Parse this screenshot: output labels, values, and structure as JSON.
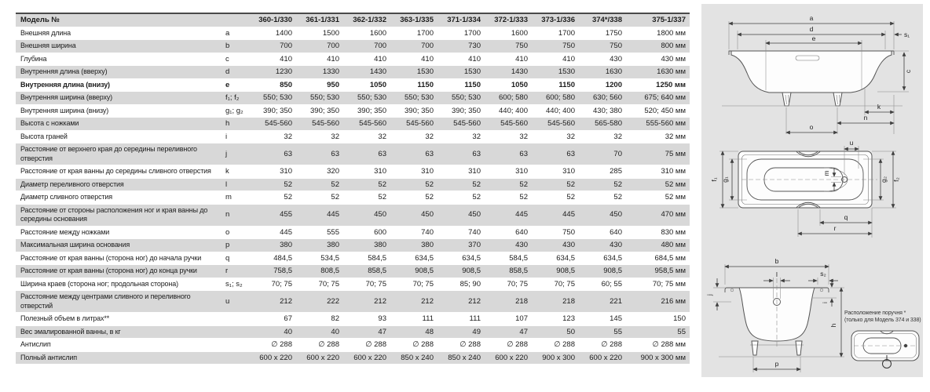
{
  "table": {
    "header": {
      "label": "Модель №",
      "models": [
        "360-1/330",
        "361-1/331",
        "362-1/332",
        "363-1/335",
        "371-1/334",
        "372-1/333",
        "373-1/336",
        "374*/338",
        "375-1/337"
      ]
    },
    "rows": [
      {
        "label": "Внешняя длина",
        "letter": "a",
        "bold": false,
        "values": [
          "1400",
          "1500",
          "1600",
          "1700",
          "1700",
          "1600",
          "1700",
          "1750",
          "1800 мм"
        ]
      },
      {
        "label": "Внешняя ширина",
        "letter": "b",
        "bold": false,
        "values": [
          "700",
          "700",
          "700",
          "700",
          "730",
          "750",
          "750",
          "750",
          "800 мм"
        ]
      },
      {
        "label": "Глубина",
        "letter": "c",
        "bold": false,
        "values": [
          "410",
          "410",
          "410",
          "410",
          "410",
          "410",
          "410",
          "430",
          "430 мм"
        ]
      },
      {
        "label": "Внутренняя длина (вверху)",
        "letter": "d",
        "bold": false,
        "values": [
          "1230",
          "1330",
          "1430",
          "1530",
          "1530",
          "1430",
          "1530",
          "1630",
          "1630 мм"
        ]
      },
      {
        "label": "Внутренняя длина (внизу)",
        "letter": "e",
        "bold": true,
        "values": [
          "850",
          "950",
          "1050",
          "1150",
          "1150",
          "1050",
          "1150",
          "1200",
          "1250 мм"
        ]
      },
      {
        "label": "Внутренняя ширина (вверху)",
        "letter": "f₁; f₂",
        "bold": false,
        "values": [
          "550; 530",
          "550; 530",
          "550; 530",
          "550; 530",
          "550; 530",
          "600; 580",
          "600; 580",
          "630; 560",
          "675; 640 мм"
        ]
      },
      {
        "label": "Внутренняя ширина (внизу)",
        "letter": "g₁; g₂",
        "bold": false,
        "values": [
          "390; 350",
          "390; 350",
          "390; 350",
          "390; 350",
          "390; 350",
          "440; 400",
          "440; 400",
          "430; 380",
          "520; 450 мм"
        ]
      },
      {
        "label": "Высота с ножками",
        "letter": "h",
        "bold": false,
        "values": [
          "545-560",
          "545-560",
          "545-560",
          "545-560",
          "545-560",
          "545-560",
          "545-560",
          "565-580",
          "555-560 мм"
        ]
      },
      {
        "label": "Высота граней",
        "letter": "i",
        "bold": false,
        "values": [
          "32",
          "32",
          "32",
          "32",
          "32",
          "32",
          "32",
          "32",
          "32 мм"
        ]
      },
      {
        "label": "Расстояние от верхнего края до середины переливного отверстия",
        "letter": "j",
        "bold": false,
        "values": [
          "63",
          "63",
          "63",
          "63",
          "63",
          "63",
          "63",
          "70",
          "75 мм"
        ]
      },
      {
        "label": "Расстояние от края ванны до середины сливного отверстия",
        "letter": "k",
        "bold": false,
        "values": [
          "310",
          "320",
          "310",
          "310",
          "310",
          "310",
          "310",
          "285",
          "310 мм"
        ]
      },
      {
        "label": "Диаметр переливного отверстия",
        "letter": "l",
        "bold": false,
        "values": [
          "52",
          "52",
          "52",
          "52",
          "52",
          "52",
          "52",
          "52",
          "52 мм"
        ]
      },
      {
        "label": "Диаметр сливного отверстия",
        "letter": "m",
        "bold": false,
        "values": [
          "52",
          "52",
          "52",
          "52",
          "52",
          "52",
          "52",
          "52",
          "52 мм"
        ]
      },
      {
        "label": "Расстояние от стороны расположения ног и края ванны до середины основания",
        "letter": "n",
        "bold": false,
        "values": [
          "455",
          "445",
          "450",
          "450",
          "450",
          "445",
          "445",
          "450",
          "470 мм"
        ]
      },
      {
        "label": "Расстояние между ножками",
        "letter": "o",
        "bold": false,
        "values": [
          "445",
          "555",
          "600",
          "740",
          "740",
          "640",
          "750",
          "640",
          "830 мм"
        ]
      },
      {
        "label": "Максимальная ширина основания",
        "letter": "p",
        "bold": false,
        "values": [
          "380",
          "380",
          "380",
          "380",
          "370",
          "430",
          "430",
          "430",
          "480 мм"
        ]
      },
      {
        "label": "Расстояние от края ванны (сторона ног) до начала ручки",
        "letter": "q",
        "bold": false,
        "values": [
          "484,5",
          "534,5",
          "584,5",
          "634,5",
          "634,5",
          "584,5",
          "634,5",
          "634,5",
          "684,5 мм"
        ]
      },
      {
        "label": "Расстояние от края ванны (сторона ног) до конца ручки",
        "letter": "r",
        "bold": false,
        "values": [
          "758,5",
          "808,5",
          "858,5",
          "908,5",
          "908,5",
          "858,5",
          "908,5",
          "908,5",
          "958,5 мм"
        ]
      },
      {
        "label": "Ширина краев (сторона ног; продольная сторона)",
        "letter": "s₁; s₂",
        "bold": false,
        "values": [
          "70; 75",
          "70; 75",
          "70; 75",
          "70; 75",
          "85; 90",
          "70; 75",
          "70; 75",
          "60; 55",
          "70; 75 мм"
        ]
      },
      {
        "label": "Расстояние между центрами сливного и переливного отверстий",
        "letter": "u",
        "bold": false,
        "values": [
          "212",
          "222",
          "212",
          "212",
          "212",
          "218",
          "218",
          "221",
          "216 мм"
        ]
      },
      {
        "label": "Полезный объем в литрах**",
        "letter": "",
        "bold": false,
        "values": [
          "67",
          "82",
          "93",
          "111",
          "111",
          "107",
          "123",
          "145",
          "150"
        ]
      },
      {
        "label": "Вес эмалированной ванны, в кг",
        "letter": "",
        "bold": false,
        "values": [
          "40",
          "40",
          "47",
          "48",
          "49",
          "47",
          "50",
          "55",
          "55"
        ]
      },
      {
        "label": "Антислип",
        "letter": "",
        "bold": false,
        "values": [
          "∅ 288",
          "∅ 288",
          "∅ 288",
          "∅ 288",
          "∅ 288",
          "∅ 288",
          "∅ 288",
          "∅ 288",
          "∅ 288 мм"
        ]
      },
      {
        "label": "Полный антислип",
        "letter": "",
        "bold": false,
        "values": [
          "600 x 220",
          "600 x 220",
          "600 x 220",
          "850 x 240",
          "850 x 240",
          "600 x 220",
          "900 x 300",
          "600 x 220",
          "900 x 300 мм"
        ]
      }
    ]
  },
  "diagrams": {
    "side_view": {
      "labels": {
        "a": "a",
        "d": "d",
        "s1": "s₁",
        "e": "e",
        "c": "c",
        "k": "k",
        "n": "n",
        "o": "o"
      }
    },
    "top_view": {
      "labels": {
        "u": "u",
        "f1": "f₁",
        "g1": "g₁",
        "m": "m",
        "g2": "g₂",
        "f2": "f₂",
        "q": "q",
        "r": "r"
      }
    },
    "end_view": {
      "labels": {
        "b": "b",
        "l": "l",
        "s2": "s₂",
        "j": "j",
        "i": "i",
        "h": "h",
        "p": "p"
      }
    },
    "inset": {
      "caption_line1": "Расположение поручня *",
      "caption_line2": "(только для Модель 374 и 338)"
    },
    "colors": {
      "panel_bg": "#e3e3e3",
      "stripe": "#d8d8d8"
    }
  }
}
